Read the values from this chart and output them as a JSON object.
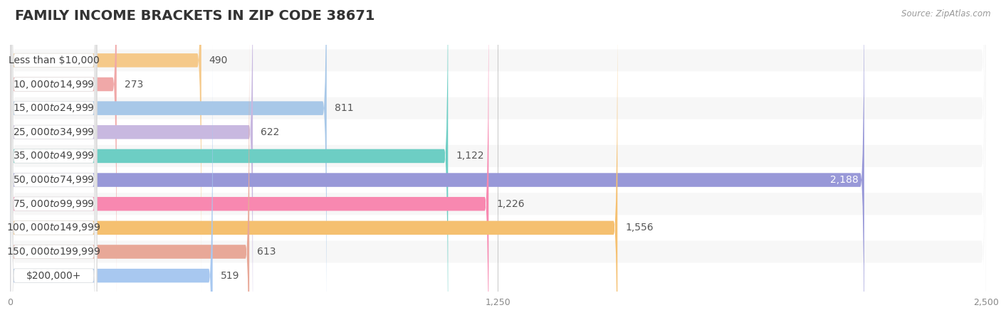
{
  "title": "FAMILY INCOME BRACKETS IN ZIP CODE 38671",
  "source": "Source: ZipAtlas.com",
  "categories": [
    "Less than $10,000",
    "$10,000 to $14,999",
    "$15,000 to $24,999",
    "$25,000 to $34,999",
    "$35,000 to $49,999",
    "$50,000 to $74,999",
    "$75,000 to $99,999",
    "$100,000 to $149,999",
    "$150,000 to $199,999",
    "$200,000+"
  ],
  "values": [
    490,
    273,
    811,
    622,
    1122,
    2188,
    1226,
    1556,
    613,
    519
  ],
  "bar_colors": [
    "#f5c98a",
    "#f0a8a8",
    "#a8c8e8",
    "#c8b8e0",
    "#6dcec4",
    "#9898d8",
    "#f888b0",
    "#f5c070",
    "#e8a898",
    "#a8c8f0"
  ],
  "xlim": [
    0,
    2500
  ],
  "xticks": [
    0,
    1250,
    2500
  ],
  "background_color": "#ffffff",
  "bar_bg_color": "#e8e8e8",
  "row_bg_color": "#f5f5f5",
  "label_bg_color": "#ffffff",
  "title_fontsize": 14,
  "label_fontsize": 10,
  "value_fontsize": 10,
  "value_inside_threshold": 1900
}
